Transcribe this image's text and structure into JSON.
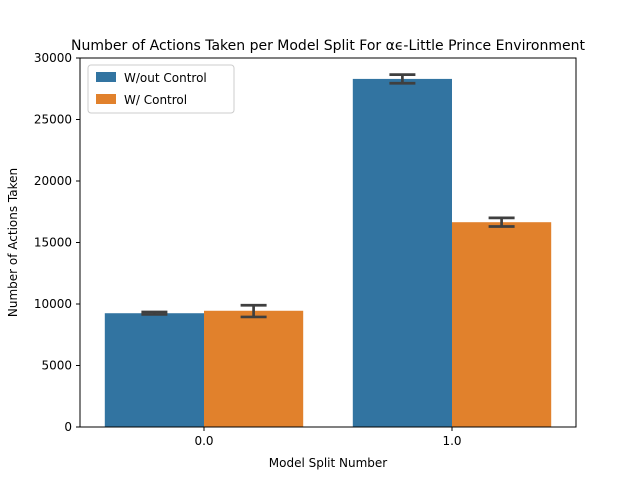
{
  "chart_data": {
    "type": "bar",
    "title": "Number of Actions Taken per Model Split For αϵ-Little Prince Environment",
    "xlabel": "Model Split Number",
    "ylabel": "Number of Actions Taken",
    "categories": [
      "0.0",
      "1.0"
    ],
    "ylim": [
      0,
      30000
    ],
    "yticks": [
      0,
      5000,
      10000,
      15000,
      20000,
      25000,
      30000
    ],
    "grid": false,
    "legend_position": "top-left",
    "series": [
      {
        "name": "W/out Control",
        "color": "#3274a1",
        "values": [
          9250,
          28300
        ],
        "error_low": [
          9150,
          27950
        ],
        "error_high": [
          9350,
          28650
        ]
      },
      {
        "name": "W/ Control",
        "color": "#e1812c",
        "values": [
          9450,
          16650
        ],
        "error_low": [
          8950,
          16300
        ],
        "error_high": [
          9900,
          17000
        ]
      }
    ],
    "error_bar_color": "#3f3f3f"
  }
}
